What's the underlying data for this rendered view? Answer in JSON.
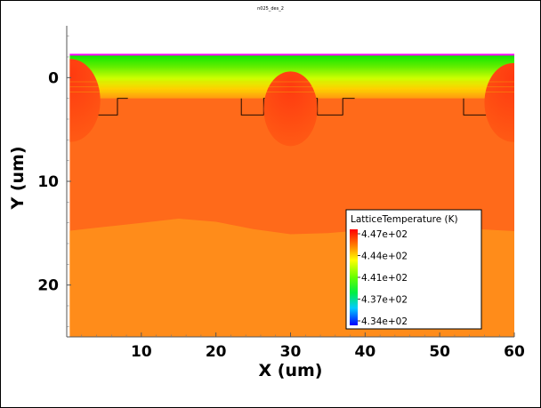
{
  "chart_data": {
    "type": "heatmap",
    "title": "n025_des_2",
    "xlabel": "X (um)",
    "ylabel": "Y (um)",
    "xlim": [
      0,
      60
    ],
    "ylim": [
      25,
      -5
    ],
    "x_ticks": [
      10,
      20,
      30,
      40,
      50,
      60
    ],
    "y_ticks": [
      0,
      10,
      20
    ],
    "legend": {
      "title": "LatticeTemperature (K)",
      "position": "bottom-right",
      "values": [
        "4.47e+02",
        "4.44e+02",
        "4.41e+02",
        "4.37e+02",
        "4.34e+02"
      ]
    },
    "colors": {
      "hot": "#ff4a12",
      "body": "#ff6a1a",
      "bottom": "#ff8c1a",
      "cool": "#00ee00",
      "accent": "#ff00ff"
    }
  }
}
